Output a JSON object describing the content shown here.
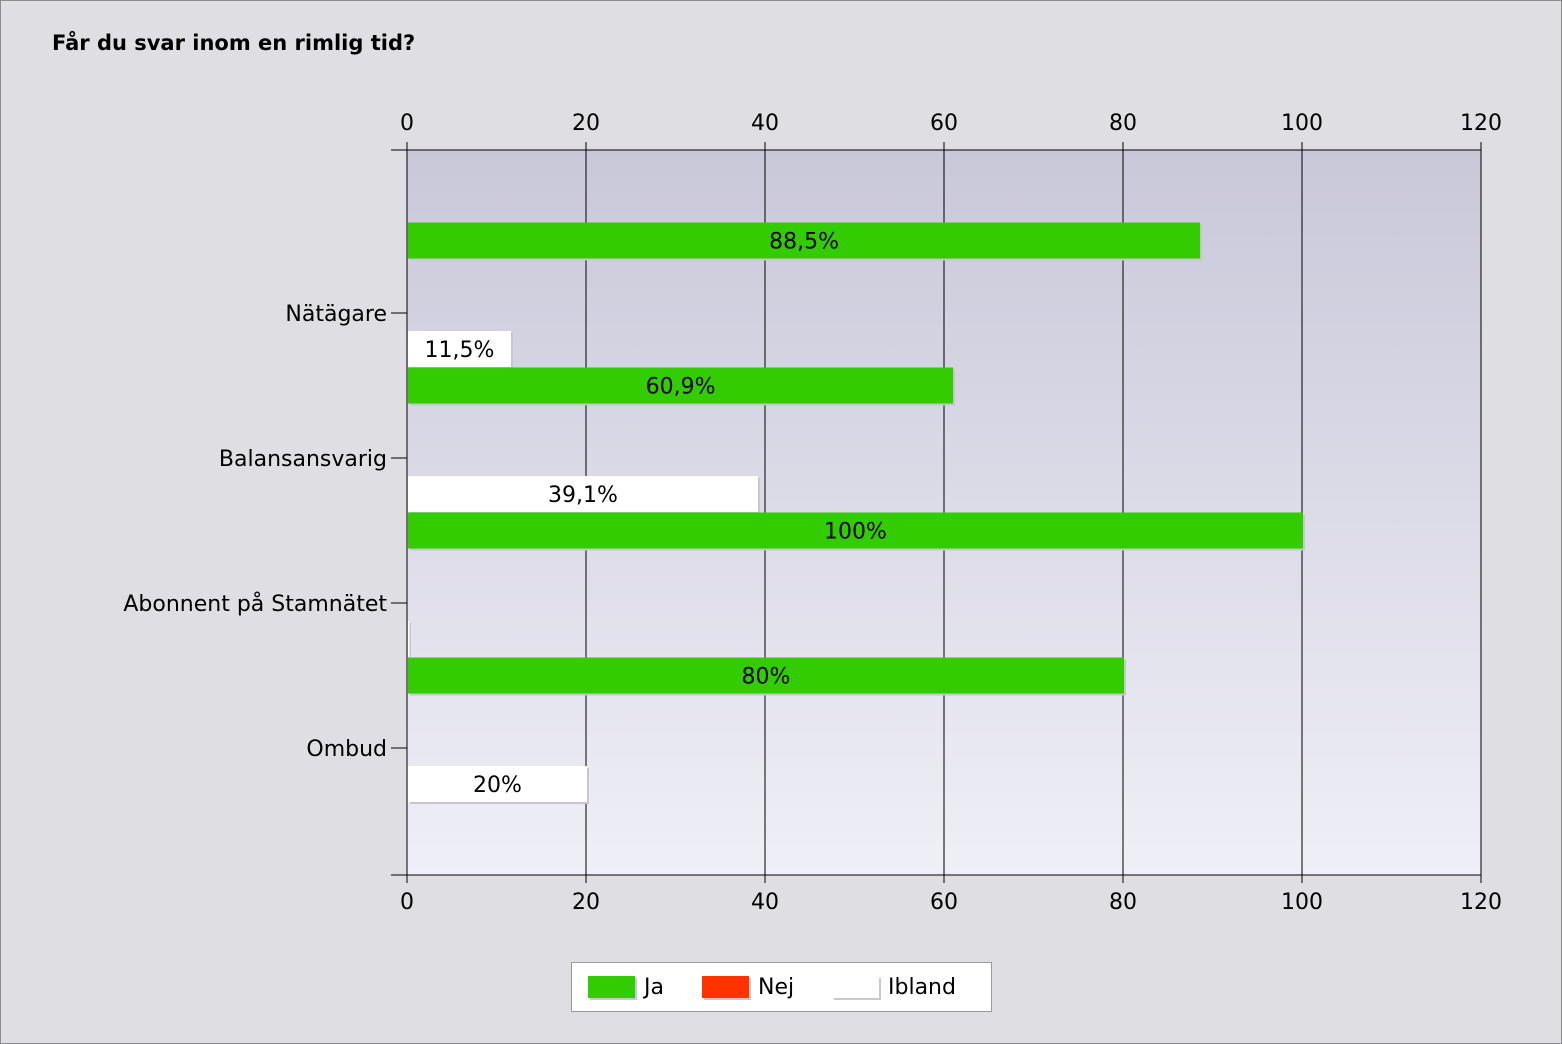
{
  "chart_data": {
    "type": "bar",
    "orientation": "horizontal",
    "title": "Får du svar inom en rimlig tid?",
    "categories": [
      "Nätägare",
      "Balansansvarig",
      "Abonnent på Stamnätet",
      "Ombud"
    ],
    "series": [
      {
        "name": "Ja",
        "color": "#33cc00",
        "values": [
          88.5,
          60.9,
          100,
          80
        ],
        "labels": [
          "88,5%",
          "60,9%",
          "100%",
          "80%"
        ]
      },
      {
        "name": "Nej",
        "color": "#ff3300",
        "values": [
          0,
          0,
          0,
          0
        ],
        "labels": [
          "",
          "",
          "",
          ""
        ]
      },
      {
        "name": "Ibland",
        "color": "#ffffff",
        "values": [
          11.5,
          39.1,
          0,
          20
        ],
        "labels": [
          "11,5%",
          "39,1%",
          "",
          "20%"
        ]
      }
    ],
    "xlim": [
      0,
      120
    ],
    "x_ticks": [
      0,
      20,
      40,
      60,
      80,
      100,
      120
    ],
    "x_tick_labels": [
      "0",
      "20",
      "40",
      "60",
      "80",
      "100",
      "120"
    ],
    "x_axis_position": "top and bottom",
    "grid": true,
    "legend_position": "bottom-center"
  },
  "colors": {
    "frame_background": "#dfdee3",
    "plot_gradient_top": "#c9c8d9",
    "plot_gradient_bottom": "#efeff7"
  }
}
